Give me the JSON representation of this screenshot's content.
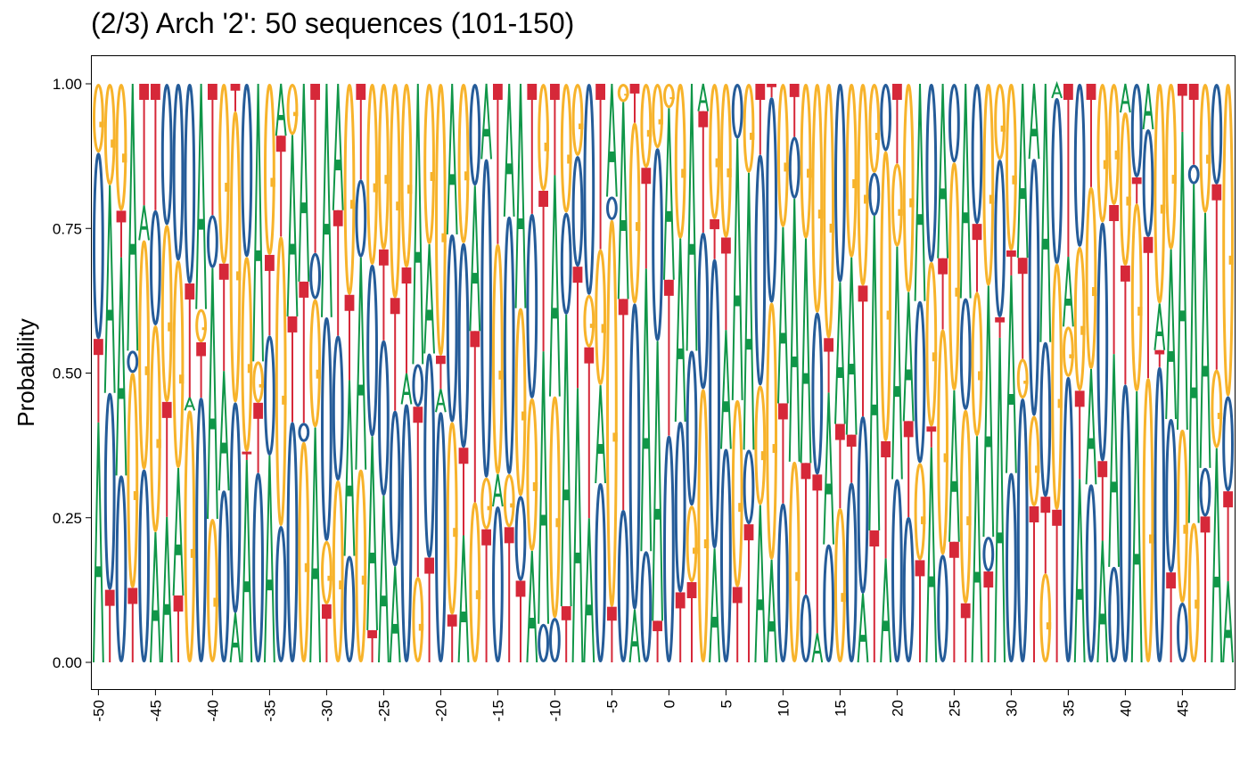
{
  "chart_data": {
    "type": "sequence-logo",
    "title": "(2/3) Arch '2': 50 sequences (101-150)",
    "xlabel": "",
    "ylabel": "Probability",
    "ylim": [
      0,
      1
    ],
    "yticks": [
      "0.00",
      "0.25",
      "0.50",
      "0.75",
      "1.00"
    ],
    "xlim": [
      -50,
      49
    ],
    "xtick_step": 5,
    "letters": [
      "A",
      "C",
      "G",
      "T"
    ],
    "colors": {
      "A": "#109648",
      "C": "#255C99",
      "G": "#F7B32B",
      "T": "#D62839"
    },
    "grid": false,
    "legend": "none"
  }
}
